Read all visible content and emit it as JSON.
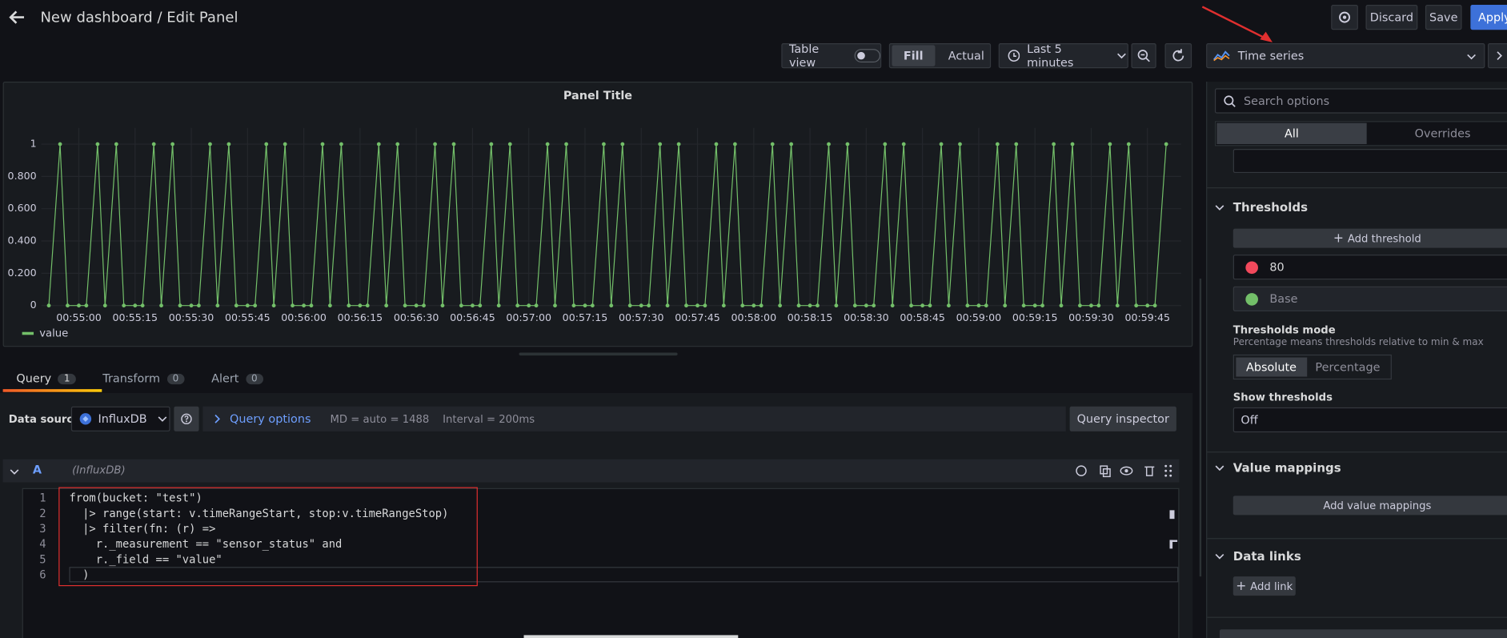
{
  "header": {
    "title": "New dashboard / Edit Panel",
    "discard": "Discard",
    "save": "Save",
    "apply": "Apply"
  },
  "toolbar": {
    "table_view": "Table view",
    "fill": "Fill",
    "actual": "Actual",
    "time_range": "Last 5 minutes",
    "visualization": "Time series"
  },
  "chart_data": {
    "type": "line",
    "title": "Panel Title",
    "x": [
      "00:54:52",
      "00:54:55",
      "00:54:57",
      "00:55:00",
      "00:55:02",
      "00:55:05",
      "00:55:07",
      "00:55:10",
      "00:55:12",
      "00:55:15",
      "00:55:17",
      "00:55:20",
      "00:55:22",
      "00:55:25",
      "00:55:27",
      "00:55:30",
      "00:55:32",
      "00:55:35",
      "00:55:37",
      "00:55:40",
      "00:55:42",
      "00:55:45",
      "00:55:47",
      "00:55:50",
      "00:55:52",
      "00:55:55",
      "00:55:57",
      "00:56:00",
      "00:56:02",
      "00:56:05",
      "00:56:07",
      "00:56:10",
      "00:56:12",
      "00:56:15",
      "00:56:17",
      "00:56:20",
      "00:56:22",
      "00:56:25",
      "00:56:27",
      "00:56:30",
      "00:56:32",
      "00:56:35",
      "00:56:37",
      "00:56:40",
      "00:56:42",
      "00:56:45",
      "00:56:47",
      "00:56:50",
      "00:56:52",
      "00:56:55",
      "00:56:57",
      "00:57:00",
      "00:57:02",
      "00:57:05",
      "00:57:07",
      "00:57:10",
      "00:57:12",
      "00:57:15",
      "00:57:17",
      "00:57:20",
      "00:57:22",
      "00:57:25",
      "00:57:27",
      "00:57:30",
      "00:57:32",
      "00:57:35",
      "00:57:37",
      "00:57:40",
      "00:57:42",
      "00:57:45",
      "00:57:47",
      "00:57:50",
      "00:57:52",
      "00:57:55",
      "00:57:57",
      "00:58:00",
      "00:58:02",
      "00:58:05",
      "00:58:07",
      "00:58:10",
      "00:58:12",
      "00:58:15",
      "00:58:17",
      "00:58:20",
      "00:58:22",
      "00:58:25",
      "00:58:27",
      "00:58:30",
      "00:58:32",
      "00:58:35",
      "00:58:37",
      "00:58:40",
      "00:58:42",
      "00:58:45",
      "00:58:47",
      "00:58:50",
      "00:58:52",
      "00:58:55",
      "00:58:57",
      "00:59:00",
      "00:59:02",
      "00:59:05",
      "00:59:07",
      "00:59:10",
      "00:59:12",
      "00:59:15",
      "00:59:17",
      "00:59:20",
      "00:59:22",
      "00:59:25",
      "00:59:27",
      "00:59:30",
      "00:59:32",
      "00:59:35",
      "00:59:37",
      "00:59:40",
      "00:59:42",
      "00:59:45",
      "00:59:47",
      "00:59:50"
    ],
    "series": [
      {
        "name": "value",
        "color": "#73bf69",
        "values": [
          0,
          1,
          0,
          0,
          0,
          1,
          0,
          1,
          0,
          0,
          0,
          1,
          0,
          1,
          0,
          0,
          0,
          1,
          0,
          1,
          0,
          0,
          0,
          1,
          0,
          1,
          0,
          0,
          0,
          1,
          0,
          1,
          0,
          0,
          0,
          1,
          0,
          1,
          0,
          0,
          0,
          1,
          0,
          1,
          0,
          0,
          0,
          1,
          0,
          1,
          0,
          0,
          0,
          1,
          0,
          1,
          0,
          0,
          0,
          1,
          0,
          1,
          0,
          0,
          0,
          1,
          0,
          1,
          0,
          0,
          0,
          1,
          0,
          1,
          0,
          0,
          0,
          1,
          0,
          1,
          0,
          0,
          0,
          1,
          0,
          1,
          0,
          0,
          0,
          1,
          0,
          1,
          0,
          0,
          0,
          1,
          0,
          1,
          0,
          0,
          0,
          1,
          0,
          1,
          0,
          0,
          0,
          1,
          0,
          1,
          0,
          0,
          0,
          1,
          0,
          1,
          0,
          0,
          0,
          1
        ]
      }
    ],
    "xlim": [
      "00:54:50",
      "00:59:54"
    ],
    "xticks": [
      "00:55:00",
      "00:55:15",
      "00:55:30",
      "00:55:45",
      "00:56:00",
      "00:56:15",
      "00:56:30",
      "00:56:45",
      "00:57:00",
      "00:57:15",
      "00:57:30",
      "00:57:45",
      "00:58:00",
      "00:58:15",
      "00:58:30",
      "00:58:45",
      "00:59:00",
      "00:59:15",
      "00:59:30",
      "00:59:45"
    ],
    "ylim": [
      0,
      1.1
    ],
    "yticks": [
      0,
      {
        "value": 0.2,
        "label": "0.200"
      },
      {
        "value": 0.4,
        "label": "0.400"
      },
      {
        "value": 0.6,
        "label": "0.600"
      },
      {
        "value": 0.8,
        "label": "0.800"
      },
      1
    ],
    "grid": true,
    "legend": "bottom-left"
  },
  "query_tabs": [
    {
      "label": "Query",
      "count": 1
    },
    {
      "label": "Transform",
      "count": 0
    },
    {
      "label": "Alert",
      "count": 0
    }
  ],
  "query_bar": {
    "data_source_label": "Data source",
    "data_source": "InfluxDB",
    "query_options": "Query options",
    "max_data_points": "MD = auto = 1488",
    "interval": "Interval = 200ms",
    "inspector": "Query inspector"
  },
  "query": {
    "ref_id": "A",
    "source": "(InfluxDB)",
    "lines": [
      {
        "number": 1,
        "text": "from(bucket: \"test\")"
      },
      {
        "number": 2,
        "text": "  |> range(start: v.timeRangeStart, stop:v.timeRangeStop)"
      },
      {
        "number": 3,
        "text": "  |> filter(fn: (r) =>"
      },
      {
        "number": 4,
        "text": "    r._measurement == \"sensor_status\" and"
      },
      {
        "number": 5,
        "text": "    r._field == \"value\""
      },
      {
        "number": 6,
        "text": "  )"
      }
    ]
  },
  "options": {
    "search": "Search options",
    "tabs": [
      "All",
      "Overrides"
    ],
    "thresholds": {
      "title": "Thresholds",
      "add": "Add threshold",
      "steps": [
        {
          "value": 80,
          "color": "#f2495c"
        },
        {
          "label": "Base",
          "color": "#73bf69"
        }
      ]
    },
    "thresholds_mode": {
      "title": "Thresholds mode",
      "description": "Percentage means thresholds relative to min & max",
      "options": [
        "Absolute",
        "Percentage"
      ]
    },
    "show_thresholds": {
      "title": "Show thresholds",
      "value": "Off"
    },
    "value_mappings": {
      "title": "Value mappings",
      "button": "Add value mappings"
    },
    "data_links": {
      "title": "Data links",
      "button": "Add link"
    }
  }
}
